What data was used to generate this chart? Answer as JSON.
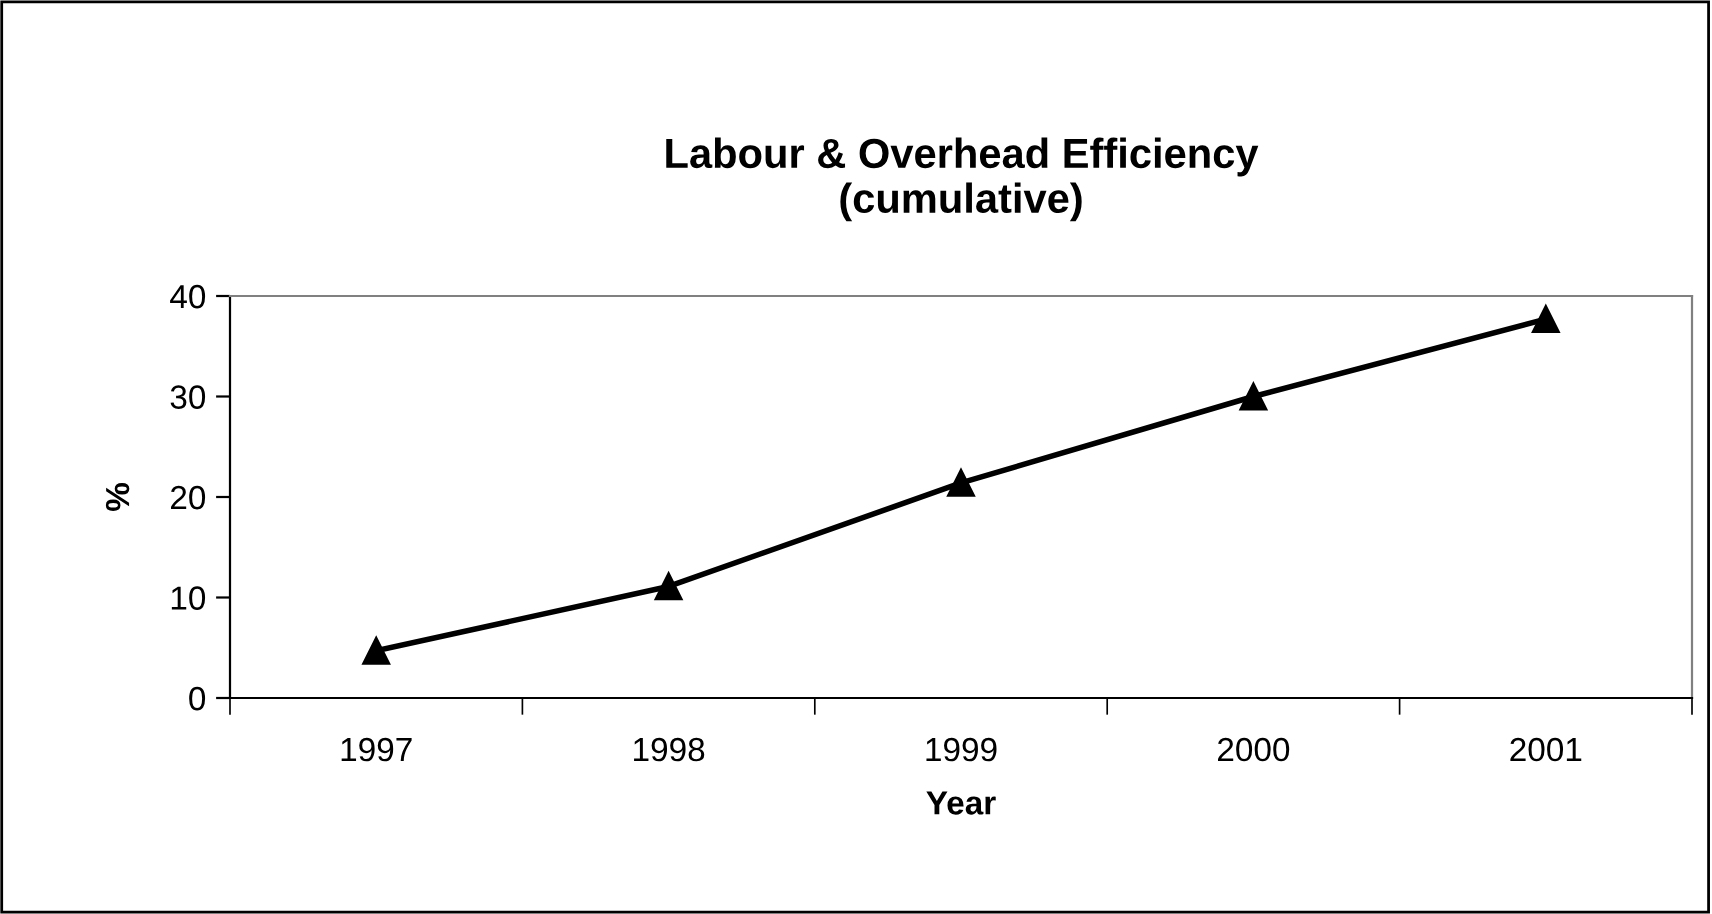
{
  "chart_data": {
    "type": "line",
    "title": "Labour & Overhead Efficiency\n(cumulative)",
    "xlabel": "Year",
    "ylabel": "%",
    "categories": [
      "1997",
      "1998",
      "1999",
      "2000",
      "2001"
    ],
    "series": [
      {
        "color": "#000000",
        "values": [
          4.7,
          11.1,
          21.4,
          30.0,
          37.7
        ]
      }
    ],
    "ylim": [
      0,
      40
    ],
    "yticks": [
      0,
      10,
      20,
      30,
      40
    ],
    "grid": false,
    "legend": false,
    "marker": "triangle",
    "line_style": "solid"
  }
}
